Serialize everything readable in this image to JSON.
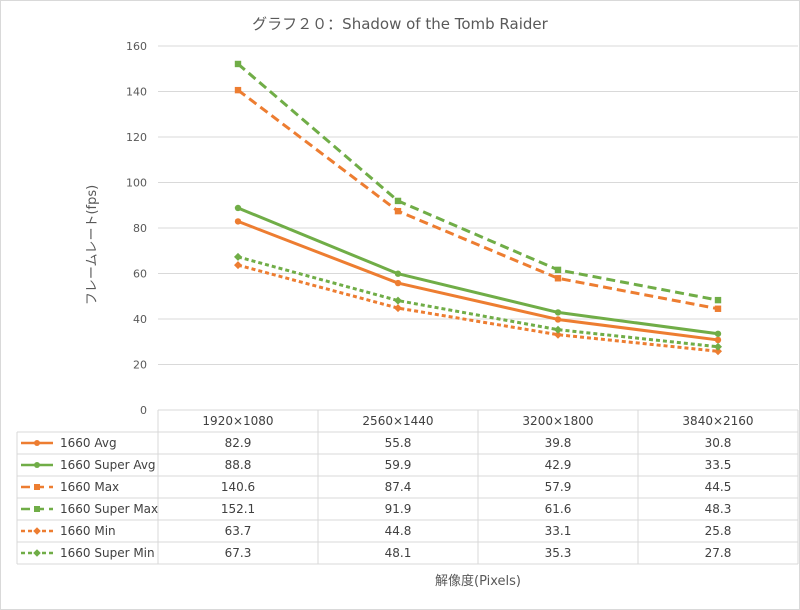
{
  "chart_data": {
    "type": "line",
    "title": "グラフ２０：Shadow of the Tomb Raider",
    "xlabel": "解像度(Pixels)",
    "ylabel": "フレームレート(fps)",
    "ylim": [
      0,
      160
    ],
    "yticks": [
      "0",
      "20",
      "40",
      "60",
      "80",
      "100",
      "120",
      "140",
      "160"
    ],
    "categories": [
      "1920×1080",
      "2560×1440",
      "3200×1800",
      "3840×2160"
    ],
    "grid": true,
    "legend": "data-table-below",
    "series": [
      {
        "name": "1660 Avg",
        "values": [
          82.9,
          55.8,
          39.8,
          30.8
        ],
        "labels": [
          "82.9",
          "55.8",
          "39.8",
          "30.8"
        ],
        "color": "#ed7d31",
        "dash": "solid",
        "marker": "circle"
      },
      {
        "name": "1660 Super Avg",
        "values": [
          88.8,
          59.9,
          42.9,
          33.5
        ],
        "labels": [
          "88.8",
          "59.9",
          "42.9",
          "33.5"
        ],
        "color": "#70ad47",
        "dash": "solid",
        "marker": "circle"
      },
      {
        "name": "1660 Max",
        "values": [
          140.6,
          87.4,
          57.9,
          44.5
        ],
        "labels": [
          "140.6",
          "87.4",
          "57.9",
          "44.5"
        ],
        "color": "#ed7d31",
        "dash": "dash",
        "marker": "square"
      },
      {
        "name": "1660 Super Max",
        "values": [
          152.1,
          91.9,
          61.6,
          48.3
        ],
        "labels": [
          "152.1",
          "91.9",
          "61.6",
          "48.3"
        ],
        "color": "#70ad47",
        "dash": "dash",
        "marker": "square"
      },
      {
        "name": "1660 Min",
        "values": [
          63.7,
          44.8,
          33.1,
          25.8
        ],
        "labels": [
          "63.7",
          "44.8",
          "33.1",
          "25.8"
        ],
        "color": "#ed7d31",
        "dash": "dot",
        "marker": "diamond"
      },
      {
        "name": "1660 Super Min",
        "values": [
          67.3,
          48.1,
          35.3,
          27.8
        ],
        "labels": [
          "67.3",
          "48.1",
          "35.3",
          "27.8"
        ],
        "color": "#70ad47",
        "dash": "dot",
        "marker": "diamond"
      }
    ]
  }
}
